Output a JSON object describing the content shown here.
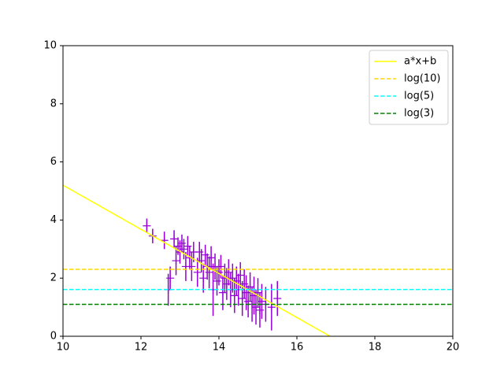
{
  "chart_data": {
    "type": "line",
    "xlim": [
      10,
      20
    ],
    "ylim": [
      0,
      10
    ],
    "xticks": [
      10,
      12,
      14,
      16,
      18,
      20
    ],
    "yticks": [
      0,
      2,
      4,
      6,
      8,
      10
    ],
    "legend": "upper right",
    "series": [
      {
        "name": "a*x+b",
        "color": "#ffff00",
        "style": "solid",
        "x": [
          10,
          16.85
        ],
        "values": [
          5.2,
          0
        ]
      },
      {
        "name": "log(10)",
        "color": "#ffd700",
        "style": "dashed",
        "x": [
          10,
          20
        ],
        "values": [
          2.303,
          2.303
        ]
      },
      {
        "name": "log(5)",
        "color": "#00ffff",
        "style": "dashed",
        "x": [
          10,
          20
        ],
        "values": [
          1.609,
          1.609
        ]
      },
      {
        "name": "log(3)",
        "color": "#008000",
        "style": "dashed",
        "x": [
          10,
          20
        ],
        "values": [
          1.099,
          1.099
        ]
      }
    ],
    "errorbars": {
      "color": "#9400d3",
      "x": [
        12.15,
        12.3,
        12.6,
        12.7,
        12.75,
        12.85,
        12.9,
        12.95,
        13.0,
        13.05,
        13.1,
        13.15,
        13.2,
        13.25,
        13.3,
        13.35,
        13.45,
        13.5,
        13.55,
        13.6,
        13.65,
        13.7,
        13.75,
        13.8,
        13.85,
        13.9,
        13.95,
        14.0,
        14.05,
        14.1,
        14.15,
        14.2,
        14.25,
        14.3,
        14.35,
        14.4,
        14.45,
        14.5,
        14.55,
        14.6,
        14.65,
        14.7,
        14.75,
        14.8,
        14.85,
        14.9,
        14.95,
        15.0,
        15.05,
        15.1,
        15.2,
        15.35,
        15.5
      ],
      "values": [
        3.8,
        3.45,
        3.3,
        1.6,
        2.0,
        3.35,
        2.6,
        3.1,
        2.9,
        3.2,
        3.0,
        2.4,
        3.1,
        2.7,
        2.4,
        2.9,
        2.2,
        2.9,
        2.6,
        2.0,
        2.8,
        2.4,
        2.2,
        2.7,
        1.6,
        2.4,
        1.9,
        2.2,
        2.4,
        1.5,
        2.0,
        1.8,
        2.2,
        1.6,
        2.0,
        1.4,
        1.9,
        1.6,
        2.1,
        1.3,
        1.8,
        1.5,
        1.2,
        1.7,
        1.1,
        1.4,
        1.0,
        1.5,
        0.9,
        1.2,
        1.1,
        1.0,
        1.3
      ],
      "yerr": [
        0.25,
        0.25,
        0.3,
        0.55,
        0.4,
        0.3,
        0.5,
        0.3,
        0.4,
        0.3,
        0.35,
        0.5,
        0.35,
        0.4,
        0.5,
        0.35,
        0.5,
        0.35,
        0.4,
        0.5,
        0.35,
        0.45,
        0.55,
        0.4,
        0.9,
        0.45,
        0.5,
        0.45,
        0.4,
        0.6,
        0.5,
        0.55,
        0.45,
        0.6,
        0.5,
        0.6,
        0.5,
        0.55,
        0.45,
        0.6,
        0.5,
        0.6,
        0.55,
        0.5,
        0.6,
        0.65,
        0.6,
        0.5,
        0.6,
        0.6,
        0.6,
        0.8,
        0.6
      ]
    }
  }
}
